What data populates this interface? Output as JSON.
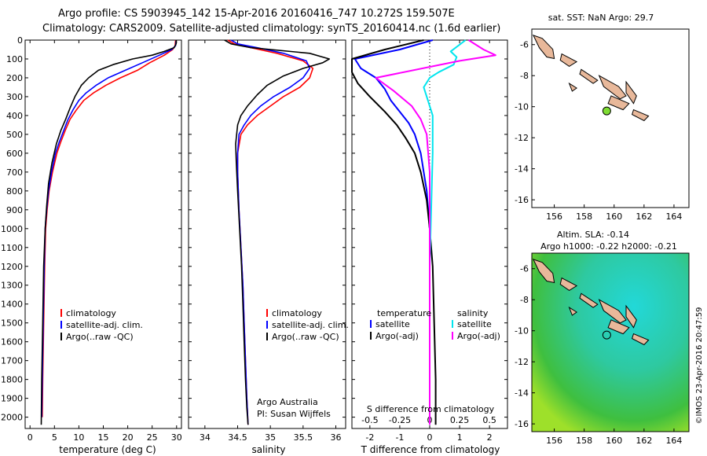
{
  "header": {
    "line1": "Argo profile: CS 5903945_142 15-Apr-2016 20160416_747 10.272S 159.507E",
    "line2": "Climatology: CARS2009. Satellite-adjusted climatology: synTS_20160414.nc (1.6d earlier)"
  },
  "colors": {
    "climatology": "#ff0000",
    "satellite": "#0000ff",
    "argo": "#000000",
    "sat_salinity": "#00e5ee",
    "argo_salinity": "#ff00ff",
    "land": "#e8b89a"
  },
  "depth_ticks": [
    0,
    100,
    200,
    300,
    400,
    500,
    600,
    700,
    800,
    900,
    1000,
    1100,
    1200,
    1300,
    1400,
    1500,
    1600,
    1700,
    1800,
    1900,
    2000
  ],
  "chart_data": [
    {
      "id": "temperature",
      "type": "line",
      "xlabel": "temperature (deg C)",
      "ylim": [
        0,
        2060
      ],
      "xlim": [
        -1,
        31
      ],
      "xticks": [
        0,
        5,
        10,
        15,
        20,
        25,
        30
      ],
      "legend": [
        "climatology",
        "satellite-adj. clim.",
        "Argo(..raw -QC)"
      ],
      "series": [
        {
          "name": "climatology",
          "x": [
            29.8,
            29.7,
            29.2,
            27.5,
            24.5,
            22,
            18.5,
            15.5,
            13,
            11,
            9.5,
            8.2,
            7.2,
            6.3,
            5.5,
            4.6,
            3.9,
            3.5,
            3.2,
            3.0,
            2.8,
            2.6,
            2.5
          ],
          "y": [
            0,
            30,
            50,
            80,
            120,
            160,
            200,
            240,
            280,
            320,
            370,
            420,
            480,
            540,
            600,
            700,
            800,
            900,
            1000,
            1200,
            1500,
            1800,
            2000
          ]
        },
        {
          "name": "satellite-adj. clim.",
          "x": [
            29.9,
            29.8,
            29,
            26.5,
            23,
            19.5,
            16,
            13.5,
            11.5,
            10,
            8.8,
            7.8,
            6.9,
            6.0,
            5.2,
            4.4,
            3.8,
            3.4,
            3.1,
            2.9,
            2.7,
            2.5,
            2.4
          ],
          "y": [
            0,
            30,
            50,
            80,
            120,
            160,
            200,
            240,
            280,
            320,
            370,
            420,
            480,
            540,
            600,
            700,
            800,
            900,
            1000,
            1200,
            1500,
            1800,
            2000
          ]
        },
        {
          "name": "Argo(..raw -QC)",
          "x": [
            29.9,
            29.9,
            29.5,
            27.5,
            25,
            21,
            17,
            14,
            12,
            10.5,
            9.2,
            8.2,
            7.3,
            6.3,
            5.4,
            4.5,
            3.8,
            3.4,
            3.1,
            2.8,
            2.6,
            2.4,
            2.3
          ],
          "y": [
            0,
            20,
            40,
            60,
            80,
            100,
            130,
            160,
            200,
            240,
            300,
            360,
            420,
            480,
            550,
            650,
            760,
            880,
            1000,
            1200,
            1500,
            1800,
            2040
          ]
        }
      ]
    },
    {
      "id": "salinity",
      "type": "line",
      "xlabel": "salinity",
      "ylim": [
        0,
        2060
      ],
      "xlim": [
        33.75,
        36.15
      ],
      "xticks": [
        34,
        34.5,
        35,
        35.5,
        36
      ],
      "legend": [
        "climatology",
        "satellite-adj. clim.",
        "Argo(..raw -QC)"
      ],
      "annotations": [
        "Argo Australia",
        "PI: Susan Wijffels"
      ],
      "series": [
        {
          "name": "climatology",
          "x": [
            34.35,
            34.45,
            34.7,
            35.1,
            35.5,
            35.65,
            35.6,
            35.45,
            35.2,
            35.0,
            34.8,
            34.65,
            34.55,
            34.5,
            34.5,
            34.52,
            34.55,
            34.58,
            34.6,
            34.62,
            34.64,
            34.66
          ],
          "y": [
            0,
            20,
            40,
            70,
            110,
            150,
            200,
            250,
            300,
            350,
            400,
            450,
            500,
            600,
            700,
            900,
            1100,
            1300,
            1500,
            1700,
            1900,
            2040
          ]
        },
        {
          "name": "satellite-adj. clim.",
          "x": [
            34.4,
            34.5,
            34.8,
            35.2,
            35.55,
            35.6,
            35.5,
            35.3,
            35.05,
            34.85,
            34.7,
            34.6,
            34.52,
            34.5,
            34.5,
            34.52,
            34.55,
            34.58,
            34.6,
            34.62,
            34.64,
            34.66
          ],
          "y": [
            0,
            20,
            40,
            70,
            110,
            150,
            200,
            250,
            300,
            350,
            400,
            450,
            500,
            600,
            700,
            900,
            1100,
            1300,
            1500,
            1700,
            1900,
            2040
          ]
        },
        {
          "name": "Argo(..raw -QC)",
          "x": [
            34.3,
            34.4,
            34.7,
            35.6,
            35.9,
            35.8,
            35.5,
            35.2,
            34.95,
            34.8,
            34.65,
            34.55,
            34.5,
            34.47,
            34.48,
            34.5,
            34.53,
            34.56,
            34.58,
            34.6,
            34.62,
            34.64,
            34.66
          ],
          "y": [
            0,
            20,
            40,
            70,
            100,
            120,
            150,
            190,
            240,
            290,
            350,
            400,
            450,
            550,
            650,
            800,
            1000,
            1200,
            1400,
            1600,
            1800,
            1950,
            2040
          ]
        }
      ]
    },
    {
      "id": "differences",
      "type": "line",
      "xlabel": "T difference from climatology",
      "xlabel_top": "S difference from climatology",
      "ylim": [
        0,
        2060
      ],
      "xlim": [
        -2.6,
        2.6
      ],
      "xticks": [
        -2,
        -1,
        0,
        1,
        2
      ],
      "s_ticks_labels": [
        "-0.5",
        "-0.25",
        "0",
        "0.25",
        "0.5"
      ],
      "s_ticks_t": [
        -2,
        -1,
        0,
        1,
        2
      ],
      "legend_left_title": "temperature",
      "legend_right_title": "salinity",
      "legend": [
        "satellite",
        "Argo(-adj)",
        "satellite",
        "Argo(-adj)"
      ],
      "series": [
        {
          "name": "T satellite",
          "x": [
            0.1,
            -1.0,
            -2.5,
            -2.3,
            -1.8,
            -1.5,
            -1.3,
            -1.0,
            -0.7,
            -0.5,
            -0.3,
            -0.2,
            -0.1,
            0,
            0,
            0
          ],
          "y": [
            0,
            50,
            100,
            150,
            200,
            260,
            320,
            380,
            440,
            500,
            600,
            700,
            800,
            1000,
            1500,
            2040
          ]
        },
        {
          "name": "T Argo",
          "x": [
            -0.2,
            -1.5,
            -2.6,
            -2.6,
            -2.4,
            -2.0,
            -1.5,
            -1.1,
            -0.8,
            -0.5,
            -0.3,
            -0.1,
            0,
            0.1,
            0.15,
            0.2,
            0.2
          ],
          "y": [
            0,
            50,
            100,
            170,
            230,
            300,
            380,
            450,
            520,
            600,
            700,
            850,
            1000,
            1200,
            1500,
            1800,
            2040
          ]
        },
        {
          "name": "S satellite",
          "x": [
            1.2,
            0.7,
            0.9,
            0.8,
            0.3,
            0.0,
            -0.2,
            -0.1,
            0.1,
            0.1,
            0.05,
            0,
            0
          ],
          "y": [
            0,
            60,
            90,
            130,
            170,
            200,
            250,
            300,
            400,
            600,
            900,
            1200,
            2040
          ]
        },
        {
          "name": "S Argo",
          "x": [
            1.3,
            1.8,
            2.2,
            1.0,
            -1.8,
            -1.2,
            -0.6,
            -0.3,
            -0.1,
            0,
            0,
            0
          ],
          "y": [
            0,
            50,
            80,
            110,
            200,
            270,
            350,
            420,
            500,
            700,
            1200,
            2040
          ]
        }
      ]
    }
  ],
  "maps": [
    {
      "id": "sst-map",
      "title": "sat. SST: NaN Argo: 29.7",
      "xticks": [
        156,
        158,
        160,
        162,
        164
      ],
      "yticks": [
        -6,
        -8,
        -10,
        -12,
        -14,
        -16
      ],
      "xlim": [
        154.5,
        165
      ],
      "ylim": [
        -16.5,
        -5
      ]
    },
    {
      "id": "sla-map",
      "title_line1": "Altim. SLA: -0.14",
      "title_line2": "Argo h1000: -0.22 h2000: -0.21",
      "xticks": [
        156,
        158,
        160,
        162,
        164
      ],
      "yticks": [
        -6,
        -8,
        -10,
        -12,
        -14,
        -16
      ],
      "xlim": [
        154.5,
        165
      ],
      "ylim": [
        -16.5,
        -5
      ],
      "credit": "©IMOS 23-Apr-2016 20:47:59"
    }
  ],
  "float_position": {
    "lon": 159.507,
    "lat": -10.272
  }
}
